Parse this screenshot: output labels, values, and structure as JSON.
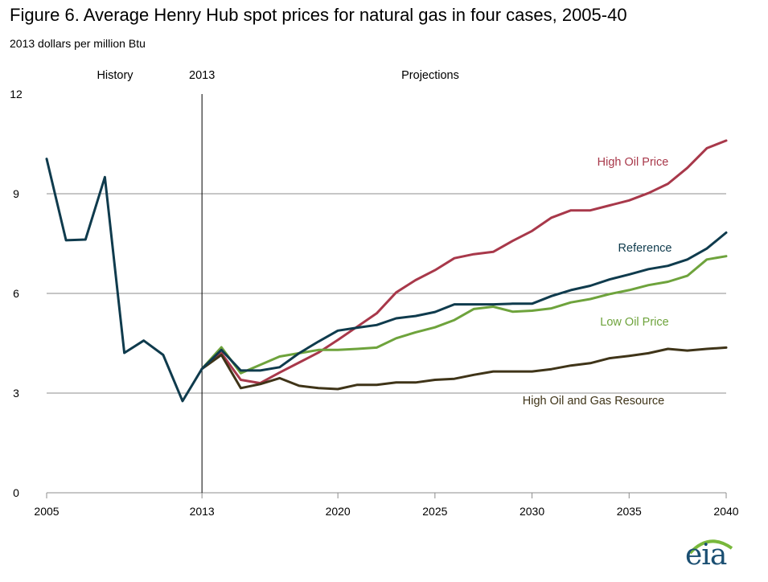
{
  "title": "Figure 6. Average Henry Hub spot prices for natural gas in four cases, 2005-40",
  "units": "2013 dollars per million Btu",
  "regions": {
    "history": "History",
    "divider": "2013",
    "projections": "Projections"
  },
  "logo": {
    "text": "eia",
    "colors": [
      "#1b4f72",
      "#78b83b"
    ]
  },
  "chart_data": {
    "type": "line",
    "title": "Figure 6. Average Henry Hub spot prices for natural gas in four cases, 2005-40",
    "ylabel": "2013 dollars per million Btu",
    "xlim": [
      2005,
      2040
    ],
    "ylim": [
      0,
      12
    ],
    "yticks": [
      0,
      3,
      6,
      9,
      12
    ],
    "xticks": [
      2005,
      2013,
      2020,
      2025,
      2030,
      2035,
      2040
    ],
    "divider_year": 2013,
    "grid": true,
    "legend": "inline labels",
    "series": [
      {
        "name": "High Oil Price",
        "color": "#a8384a",
        "x": [
          2013,
          2014,
          2015,
          2016,
          2017,
          2018,
          2019,
          2020,
          2021,
          2022,
          2023,
          2024,
          2025,
          2026,
          2027,
          2028,
          2029,
          2030,
          2031,
          2032,
          2033,
          2034,
          2035,
          2036,
          2037,
          2038,
          2039,
          2040
        ],
        "y": [
          3.73,
          4.2,
          3.4,
          3.3,
          3.62,
          3.92,
          4.22,
          4.6,
          5.0,
          5.4,
          6.03,
          6.4,
          6.7,
          7.06,
          7.18,
          7.25,
          7.58,
          7.88,
          8.28,
          8.5,
          8.5,
          8.65,
          8.8,
          9.02,
          9.3,
          9.78,
          10.37,
          10.6
        ]
      },
      {
        "name": "Reference",
        "color": "#0f3b4d",
        "x": [
          2005,
          2006,
          2007,
          2008,
          2009,
          2010,
          2011,
          2012,
          2013,
          2014,
          2015,
          2016,
          2017,
          2018,
          2019,
          2020,
          2021,
          2022,
          2023,
          2024,
          2025,
          2026,
          2027,
          2028,
          2029,
          2030,
          2031,
          2032,
          2033,
          2034,
          2035,
          2036,
          2037,
          2038,
          2039,
          2040
        ],
        "y": [
          10.05,
          7.6,
          7.62,
          9.5,
          4.21,
          4.58,
          4.15,
          2.76,
          3.73,
          4.3,
          3.68,
          3.68,
          3.78,
          4.2,
          4.55,
          4.88,
          4.97,
          5.05,
          5.25,
          5.32,
          5.44,
          5.67,
          5.67,
          5.67,
          5.69,
          5.69,
          5.92,
          6.1,
          6.23,
          6.42,
          6.57,
          6.73,
          6.83,
          7.02,
          7.35,
          7.83
        ]
      },
      {
        "name": "Low Oil Price",
        "color": "#6ea33c",
        "x": [
          2013,
          2014,
          2015,
          2016,
          2017,
          2018,
          2019,
          2020,
          2021,
          2022,
          2023,
          2024,
          2025,
          2026,
          2027,
          2028,
          2029,
          2030,
          2031,
          2032,
          2033,
          2034,
          2035,
          2036,
          2037,
          2038,
          2039,
          2040
        ],
        "y": [
          3.73,
          4.38,
          3.6,
          3.85,
          4.1,
          4.2,
          4.3,
          4.3,
          4.33,
          4.37,
          4.65,
          4.83,
          4.98,
          5.2,
          5.53,
          5.6,
          5.45,
          5.48,
          5.55,
          5.73,
          5.83,
          5.98,
          6.1,
          6.25,
          6.35,
          6.53,
          7.02,
          7.12
        ]
      },
      {
        "name": "High Oil and Gas Resource",
        "color": "#3f3418",
        "x": [
          2013,
          2014,
          2015,
          2016,
          2017,
          2018,
          2019,
          2020,
          2021,
          2022,
          2023,
          2024,
          2025,
          2026,
          2027,
          2028,
          2029,
          2030,
          2031,
          2032,
          2033,
          2034,
          2035,
          2036,
          2037,
          2038,
          2039,
          2040
        ],
        "y": [
          3.73,
          4.15,
          3.15,
          3.27,
          3.45,
          3.22,
          3.15,
          3.12,
          3.25,
          3.25,
          3.32,
          3.32,
          3.4,
          3.43,
          3.55,
          3.65,
          3.65,
          3.65,
          3.72,
          3.83,
          3.9,
          4.05,
          4.12,
          4.2,
          4.33,
          4.28,
          4.33,
          4.37
        ]
      }
    ]
  }
}
